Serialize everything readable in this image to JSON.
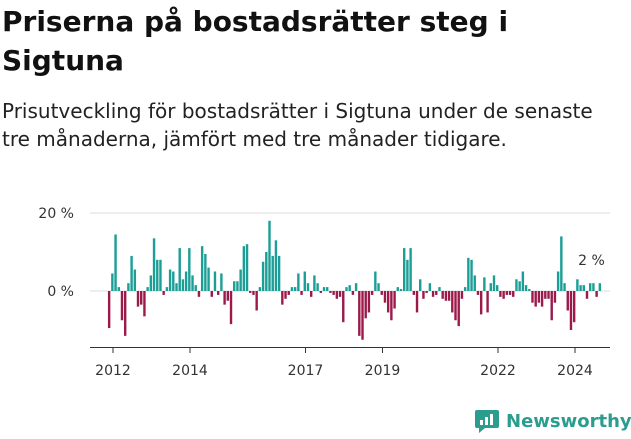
{
  "title": "Priserna på bostadsrätter steg i Sigtuna",
  "subtitle": "Prisutveckling för bostadsrätter i Sigtuna under de senaste tre månaderna, jämfört med tre månader tidigare.",
  "brand": "Newsworthy",
  "colors": {
    "positive": "#1a9e96",
    "negative": "#9b1a4a",
    "grid": "#dddddd",
    "brand": "#2a9d8f"
  },
  "chart_data": {
    "type": "bar",
    "title": "Priserna på bostadsrätter steg i Sigtuna",
    "y_unit": "%",
    "ylim": [
      -13,
      21
    ],
    "y_ticks": [
      {
        "value": 0,
        "label": "0 %"
      },
      {
        "value": 20,
        "label": "20 %"
      }
    ],
    "x_ticks": [
      {
        "x": 2012.0,
        "label": "2012"
      },
      {
        "x": 2014.0,
        "label": "2014"
      },
      {
        "x": 2017.0,
        "label": "2017"
      },
      {
        "x": 2019.0,
        "label": "2019"
      },
      {
        "x": 2022.0,
        "label": "2022"
      },
      {
        "x": 2024.0,
        "label": "2024"
      }
    ],
    "x_start": 2011.9,
    "x_step": 0.0833,
    "last_label": "2 %",
    "grid": true,
    "values": [
      -9.5,
      4.5,
      14.5,
      1,
      -7.5,
      -11.5,
      2,
      9,
      5.5,
      -4,
      -3.5,
      -6.5,
      1,
      4,
      13.5,
      8,
      8,
      -1,
      1,
      5.5,
      5,
      2,
      11,
      3,
      5,
      11,
      4,
      1.5,
      -1.5,
      11.5,
      9.5,
      6,
      -1.5,
      5,
      -1,
      4.5,
      -3.5,
      -2.5,
      -8.5,
      2.5,
      2.5,
      5.5,
      11.5,
      12,
      -0.5,
      -1,
      -5,
      1,
      7.5,
      10,
      18,
      9,
      13,
      9,
      -3.5,
      -2,
      -1,
      1,
      1,
      4.5,
      -1,
      5,
      2,
      -1.5,
      4,
      2,
      -0.5,
      1,
      1,
      -0.5,
      -1,
      -2,
      -1.5,
      -8,
      1,
      1.5,
      -1,
      2,
      -11.5,
      -12.5,
      -7,
      -5.5,
      -1,
      5,
      2,
      -1,
      -3,
      -5.5,
      -7.5,
      -4.5,
      1,
      0.5,
      11,
      8,
      11,
      -1,
      -5.5,
      3,
      -2,
      -0.5,
      2,
      -1.5,
      -1,
      1,
      -2,
      -2.5,
      -2.5,
      -5.5,
      -7.5,
      -9,
      -2,
      1,
      8.5,
      8,
      4,
      -1,
      -6,
      3.5,
      -5.5,
      2,
      4,
      1.5,
      -1.5,
      -2,
      -1,
      -1,
      -1.5,
      3,
      2.5,
      5,
      1.5,
      0.5,
      -3,
      -4,
      -3,
      -4,
      -2,
      -2,
      -7.5,
      -3,
      5,
      14,
      2,
      -5,
      -10,
      -8,
      3,
      1.5,
      1.5,
      -2,
      2,
      2,
      -1.5,
      2
    ]
  }
}
